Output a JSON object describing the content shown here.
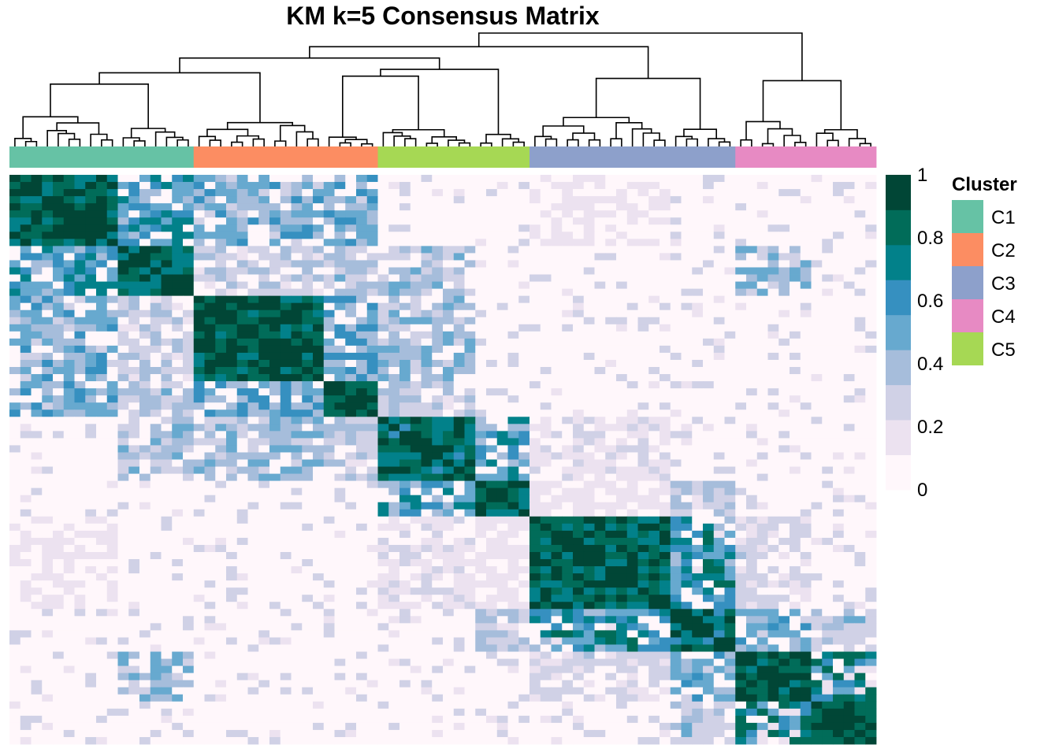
{
  "chart_data": {
    "type": "heatmap",
    "title": "KM k=5 Consensus Matrix",
    "n_samples": 80,
    "colorbar": {
      "min": 0,
      "max": 1,
      "ticks": [
        {
          "value": 0,
          "label": "0"
        },
        {
          "value": 0.2,
          "label": "0.2"
        },
        {
          "value": 0.4,
          "label": "0.4"
        },
        {
          "value": 0.6,
          "label": "0.6"
        },
        {
          "value": 0.8,
          "label": "0.8"
        },
        {
          "value": 1,
          "label": "1"
        }
      ],
      "colors": [
        "#fff7fb",
        "#ece2f0",
        "#d0d1e6",
        "#a6bddb",
        "#67a9cf",
        "#3690c0",
        "#02818a",
        "#016c59",
        "#014636"
      ]
    },
    "column_annotation": [
      {
        "cluster": "C1",
        "count": 17
      },
      {
        "cluster": "C2",
        "count": 17
      },
      {
        "cluster": "C5",
        "count": 14
      },
      {
        "cluster": "C3",
        "count": 19
      },
      {
        "cluster": "C4",
        "count": 13
      }
    ],
    "legend": {
      "title": "Cluster",
      "items": [
        {
          "label": "C1",
          "color": "#66c2a5"
        },
        {
          "label": "C2",
          "color": "#fc8d62"
        },
        {
          "label": "C3",
          "color": "#8da0cb"
        },
        {
          "label": "C4",
          "color": "#e78ac3"
        },
        {
          "label": "C5",
          "color": "#a6d854"
        }
      ]
    },
    "blocks": [
      {
        "start": 0,
        "end": 10,
        "within": 0.85
      },
      {
        "start": 10,
        "end": 17,
        "within": 0.8
      },
      {
        "start": 17,
        "end": 29,
        "within": 0.9
      },
      {
        "start": 29,
        "end": 34,
        "within": 0.9
      },
      {
        "start": 34,
        "end": 43,
        "within": 0.8
      },
      {
        "start": 43,
        "end": 48,
        "within": 0.85
      },
      {
        "start": 48,
        "end": 61,
        "within": 0.85
      },
      {
        "start": 61,
        "end": 67,
        "within": 0.8
      },
      {
        "start": 67,
        "end": 74,
        "within": 0.85
      },
      {
        "start": 74,
        "end": 80,
        "within": 0.9
      }
    ],
    "cross_block": [
      {
        "a": 0,
        "b": 1,
        "value": 0.55
      },
      {
        "a": 0,
        "b": 2,
        "value": 0.45
      },
      {
        "a": 0,
        "b": 3,
        "value": 0.45
      },
      {
        "a": 1,
        "b": 2,
        "value": 0.3
      },
      {
        "a": 1,
        "b": 3,
        "value": 0.35
      },
      {
        "a": 2,
        "b": 3,
        "value": 0.5
      },
      {
        "a": 2,
        "b": 4,
        "value": 0.4
      },
      {
        "a": 3,
        "b": 4,
        "value": 0.3
      },
      {
        "a": 4,
        "b": 5,
        "value": 0.55
      },
      {
        "a": 4,
        "b": 6,
        "value": 0.2
      },
      {
        "a": 5,
        "b": 6,
        "value": 0.15
      },
      {
        "a": 5,
        "b": 7,
        "value": 0.3
      },
      {
        "a": 6,
        "b": 7,
        "value": 0.6
      },
      {
        "a": 6,
        "b": 8,
        "value": 0.25
      },
      {
        "a": 7,
        "b": 8,
        "value": 0.45
      },
      {
        "a": 7,
        "b": 9,
        "value": 0.35
      },
      {
        "a": 8,
        "b": 9,
        "value": 0.7
      },
      {
        "a": 1,
        "b": 8,
        "value": 0.4
      },
      {
        "a": 0,
        "b": 6,
        "value": 0.12
      },
      {
        "a": 1,
        "b": 4,
        "value": 0.35
      }
    ]
  }
}
